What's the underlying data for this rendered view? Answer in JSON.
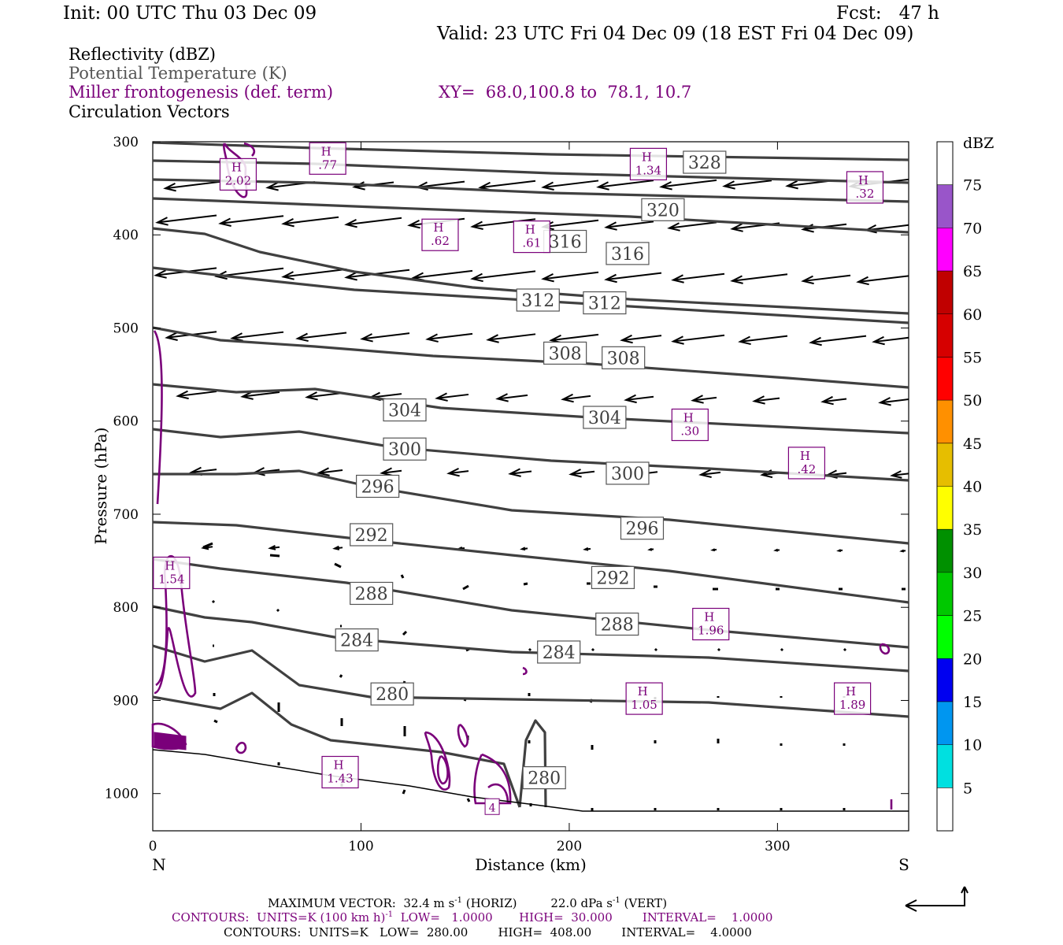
{
  "header": {
    "init": "Init: 00 UTC Thu 03 Dec 09",
    "fcst": "Fcst:   47 h",
    "valid": "Valid: 23 UTC Fri 04 Dec 09 (18 EST Fri 04 Dec 09)"
  },
  "legend": {
    "reflectivity": "Reflectivity (dBZ)",
    "theta": "Potential Temperature (K)",
    "miller": "Miller frontogenesis (def. term)",
    "xy": "XY=  68.0,100.8 to  78.1, 10.7",
    "vectors": "Circulation Vectors"
  },
  "colors": {
    "theta": "#404040",
    "miller": "#7a007a",
    "vectors": "#000000",
    "theta_label_text": "#404040",
    "legend_gray": "#555555",
    "legend_purple": "#7a007a"
  },
  "chart_data": {
    "type": "line",
    "xlabel": "Distance (km)",
    "ylabel": "Pressure (hPa)",
    "xlim": [
      0,
      363
    ],
    "ylim": [
      1040,
      300
    ],
    "y_scale": "linear, inverted (pressure)",
    "x_ticks": [
      0,
      100,
      200,
      300
    ],
    "y_ticks": [
      300,
      400,
      500,
      600,
      700,
      800,
      900,
      1000
    ],
    "x_end_labels": {
      "left": "N",
      "right": "S"
    },
    "theta_contour_labels": [
      {
        "value": "328",
        "x": 265,
        "p": 322
      },
      {
        "value": "320",
        "x": 245,
        "p": 373
      },
      {
        "value": "316",
        "x": 198,
        "p": 407
      },
      {
        "value": "316",
        "x": 228,
        "p": 420
      },
      {
        "value": "312",
        "x": 185,
        "p": 470
      },
      {
        "value": "312",
        "x": 217,
        "p": 473
      },
      {
        "value": "308",
        "x": 198,
        "p": 527
      },
      {
        "value": "308",
        "x": 226,
        "p": 532
      },
      {
        "value": "304",
        "x": 121,
        "p": 588
      },
      {
        "value": "304",
        "x": 217,
        "p": 596
      },
      {
        "value": "300",
        "x": 121,
        "p": 630
      },
      {
        "value": "300",
        "x": 228,
        "p": 656
      },
      {
        "value": "296",
        "x": 108,
        "p": 670
      },
      {
        "value": "296",
        "x": 235,
        "p": 715
      },
      {
        "value": "292",
        "x": 105,
        "p": 722
      },
      {
        "value": "292",
        "x": 221,
        "p": 768
      },
      {
        "value": "288",
        "x": 105,
        "p": 785
      },
      {
        "value": "288",
        "x": 223,
        "p": 818
      },
      {
        "value": "284",
        "x": 98,
        "p": 835
      },
      {
        "value": "284",
        "x": 195,
        "p": 848
      },
      {
        "value": "280",
        "x": 115,
        "p": 893
      },
      {
        "value": "280",
        "x": 188,
        "p": 983
      }
    ],
    "frontogenesis_maxima": [
      {
        "label": "H",
        "value": "2.02",
        "x": 41,
        "p": 335
      },
      {
        "label": "H",
        "value": ".77",
        "x": 84,
        "p": 318
      },
      {
        "label": "H",
        "value": "1.34",
        "x": 238,
        "p": 324
      },
      {
        "label": "H",
        "value": ".32",
        "x": 342,
        "p": 349
      },
      {
        "label": "H",
        "value": ".62",
        "x": 138,
        "p": 400
      },
      {
        "label": "H",
        "value": ".61",
        "x": 182,
        "p": 402
      },
      {
        "label": "H",
        "value": ".30",
        "x": 258,
        "p": 604
      },
      {
        "label": "H",
        "value": ".42",
        "x": 314,
        "p": 645
      },
      {
        "label": "H",
        "value": "1.54",
        "x": 9,
        "p": 763
      },
      {
        "label": "H",
        "value": "1.96",
        "x": 268,
        "p": 818
      },
      {
        "label": "H",
        "value": "1.05",
        "x": 236,
        "p": 898
      },
      {
        "label": "H",
        "value": "1.89",
        "x": 336,
        "p": 898
      },
      {
        "label": "H",
        "value": "1.43",
        "x": 90,
        "p": 977
      }
    ],
    "frontogenesis_label_4": {
      "value": "4",
      "x": 163,
      "p": 1014
    },
    "colorbar": {
      "title": "dBZ",
      "levels": [
        "5",
        "10",
        "15",
        "20",
        "25",
        "30",
        "35",
        "40",
        "45",
        "50",
        "55",
        "60",
        "65",
        "70",
        "75"
      ],
      "colors": [
        "#ffffff",
        "#00e0e0",
        "#0096f0",
        "#0000f0",
        "#00ff00",
        "#00c800",
        "#009000",
        "#ffff00",
        "#e6be00",
        "#ff9000",
        "#ff0000",
        "#d60000",
        "#c00000",
        "#ff00ff",
        "#9955c9",
        "#ffffff"
      ]
    }
  },
  "footer": {
    "max_vector_label": "MAXIMUM VECTOR:  32.4 m s",
    "max_vector_sup": "-1",
    "max_vector_mid": " (HORIZ)         22.0 dPa s",
    "max_vector_sup2": "-1",
    "max_vector_tail": " (VERT)",
    "contours1_a": "CONTOURS:  UNITS=K (100 km h)",
    "contours1_sup": "-1",
    "contours1_b": "  LOW=   1.0000       HIGH=  30.000        INTERVAL=    1.0000",
    "contours2": "CONTOURS:  UNITS=K   LOW=  280.00        HIGH=  408.00        INTERVAL=    4.0000"
  }
}
